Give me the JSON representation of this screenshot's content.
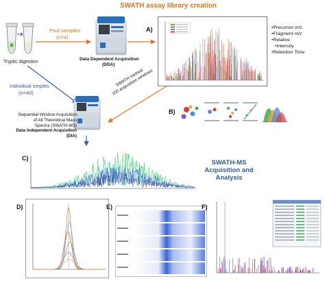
{
  "title": "SWATH assay library creation",
  "left": {
    "tube_label": "Tryptic digestion",
    "pool_label": "Pool samples",
    "pool_n": "(n=4)",
    "individual_label": "Individual smples",
    "individual_n": "(n=40)"
  },
  "dda": {
    "label_line1": "Data Dependent Acquisition",
    "label_line2": "(DDA)"
  },
  "dia": {
    "line1": "Sequential Window Acquisition",
    "line2": "of All Theoretical Mass",
    "line3": "Spectra (SWATH-MS)",
    "line4": "Data Independent Acquisition",
    "line5": "(DIA)"
  },
  "swath_method": {
    "line1": "SWATH method",
    "line2": "100 acquisition windows"
  },
  "panel_a": {
    "letter": "A)",
    "bullets": [
      "Precursor m/z",
      "Fragment m/z",
      "Relative",
      "Intensity",
      "Retention Time"
    ]
  },
  "panel_b": {
    "letter": "B)"
  },
  "panel_c": {
    "letter": "C)"
  },
  "swath_acq": {
    "line1": "SWATH-MS",
    "line2": "Acquisition and",
    "line3": "Analysis"
  },
  "panel_d": {
    "letter": "D)"
  },
  "panel_e": {
    "letter": "E)"
  },
  "panel_f": {
    "letter": "F)"
  },
  "colors": {
    "orange": "#e8731c",
    "blue": "#2e5aa8",
    "chrom_green": "#3fcf6a",
    "chrom_blue": "#2a3fd8"
  },
  "icons": [
    "tube-icon",
    "mass-spectrometer-icon",
    "arrow-icon"
  ]
}
